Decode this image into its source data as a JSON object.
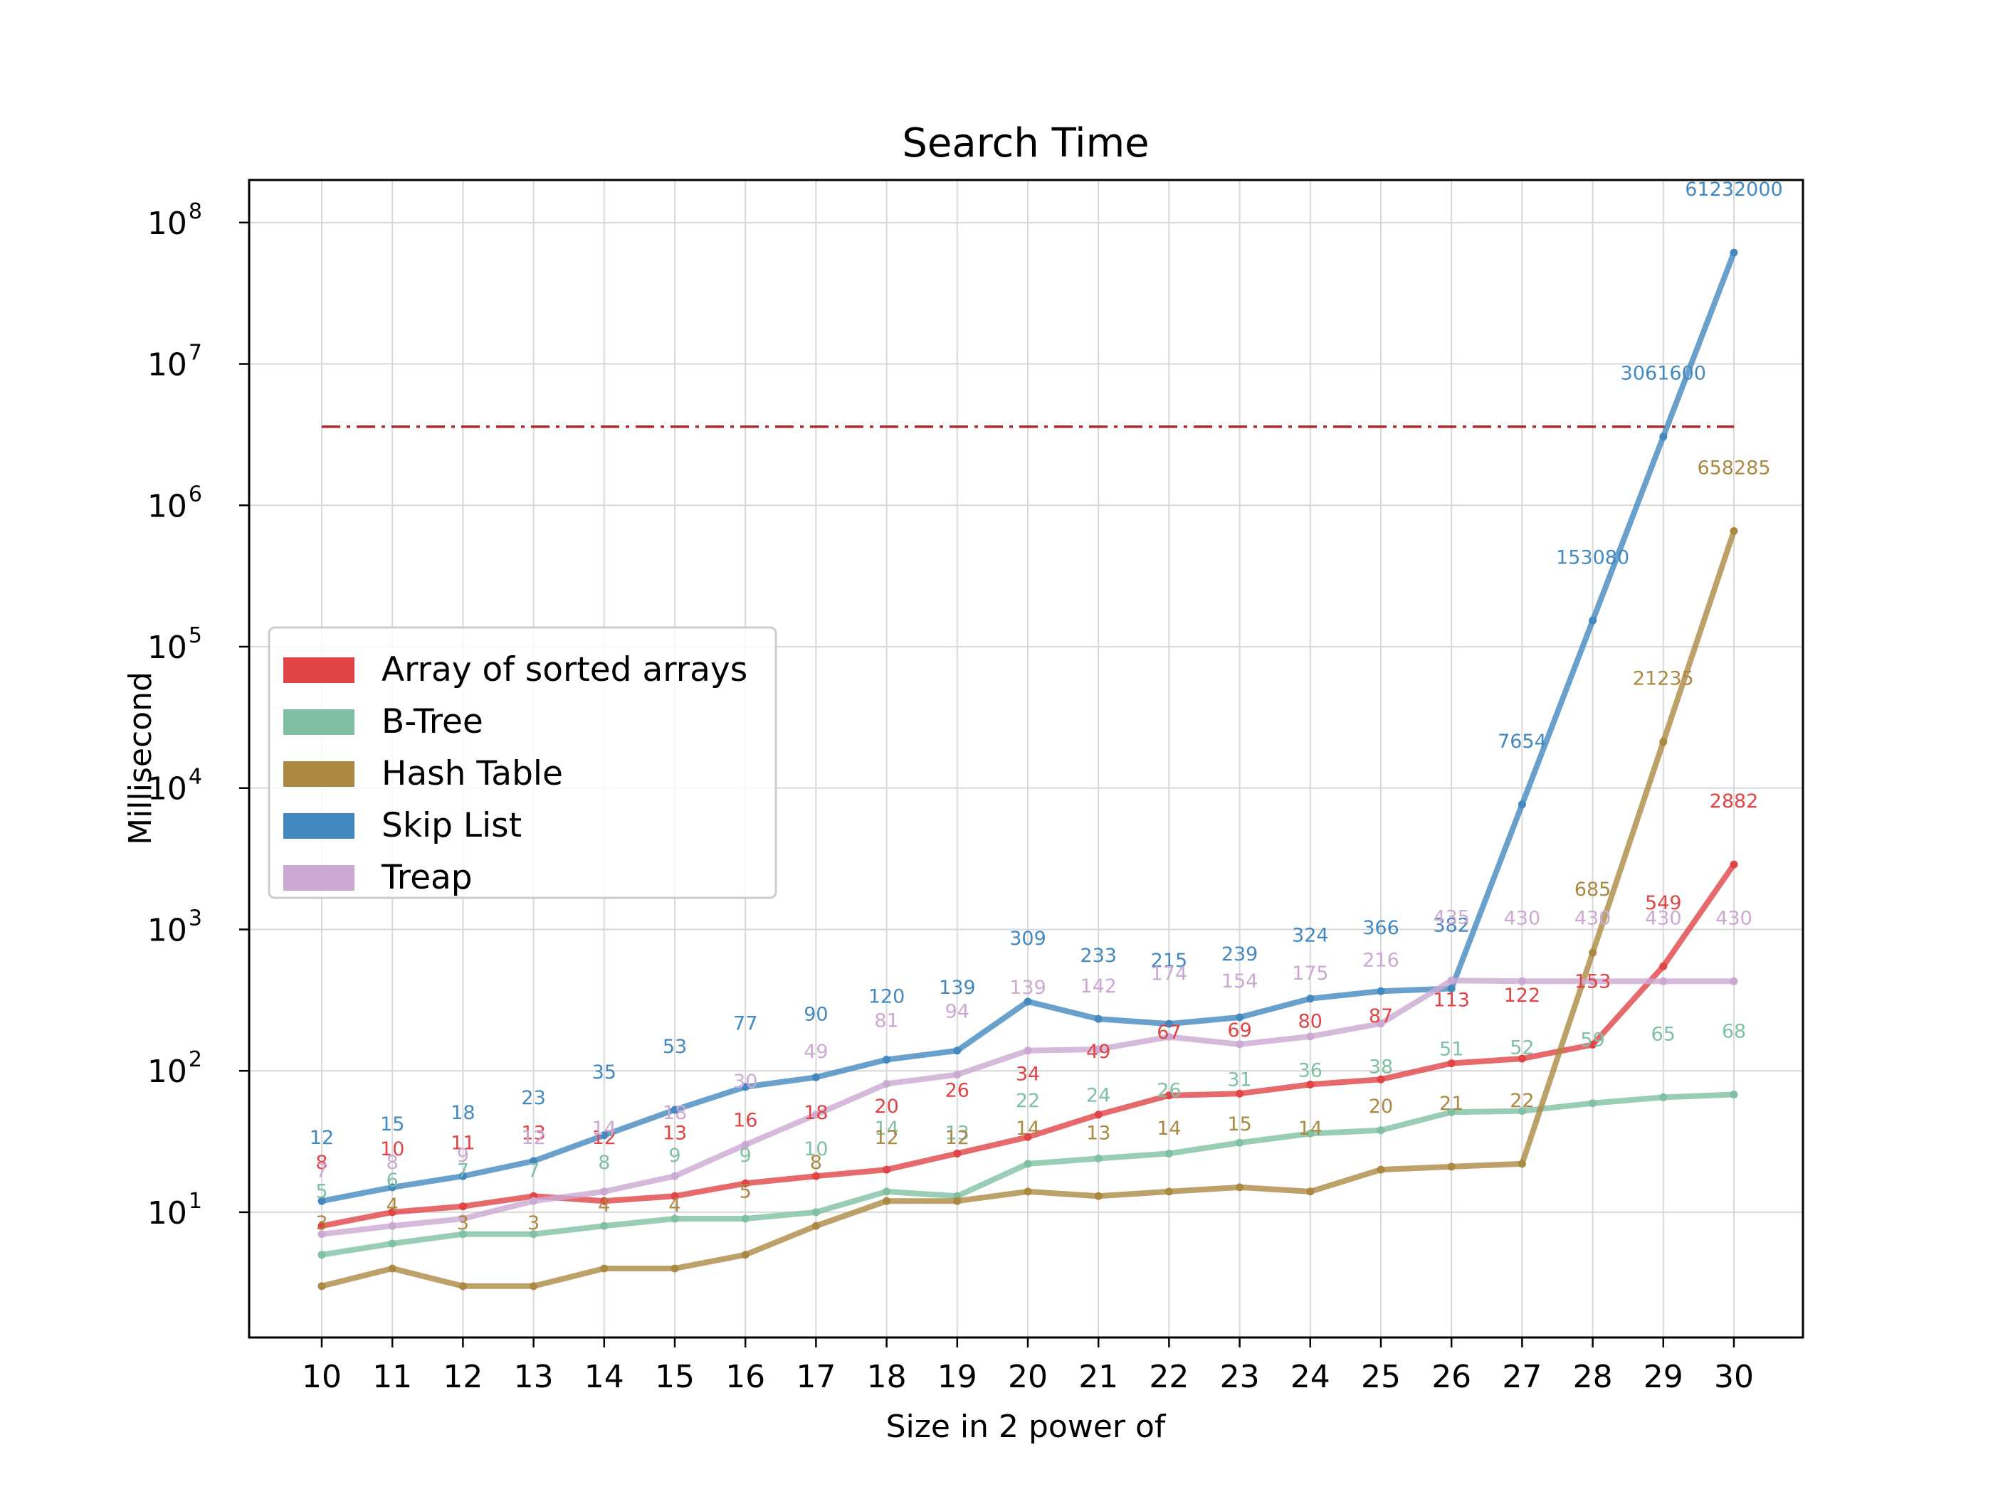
{
  "chart_data": {
    "type": "line",
    "title": "Search Time",
    "xlabel": "Size in 2 power of",
    "ylabel": "Millisecond",
    "yscale": "log",
    "ylim": [
      1.3,
      200000000
    ],
    "grid": true,
    "legend_position": "center-left",
    "x": [
      10,
      11,
      12,
      13,
      14,
      15,
      16,
      17,
      18,
      19,
      20,
      21,
      22,
      23,
      24,
      25,
      26,
      27,
      28,
      29,
      30
    ],
    "x_tick_labels": [
      "10",
      "11",
      "12",
      "13",
      "14",
      "15",
      "16",
      "17",
      "18",
      "19",
      "20",
      "21",
      "22",
      "23",
      "24",
      "25",
      "26",
      "27",
      "28",
      "29",
      "30"
    ],
    "y_ticks": [
      {
        "base": "10",
        "exp": "1",
        "value": 10
      },
      {
        "base": "10",
        "exp": "2",
        "value": 100
      },
      {
        "base": "10",
        "exp": "3",
        "value": 1000
      },
      {
        "base": "10",
        "exp": "4",
        "value": 10000
      },
      {
        "base": "10",
        "exp": "5",
        "value": 100000
      },
      {
        "base": "10",
        "exp": "6",
        "value": 1000000
      },
      {
        "base": "10",
        "exp": "7",
        "value": 10000000
      },
      {
        "base": "10",
        "exp": "8",
        "value": 100000000
      }
    ],
    "reference_line": {
      "value": 3600000,
      "color": "#a8282c",
      "style": "dashdot"
    },
    "series": [
      {
        "name": "Array of sorted arrays",
        "color": "#e04446",
        "values": [
          8,
          10,
          11,
          13,
          12,
          13,
          16,
          18,
          20,
          26,
          34,
          49,
          67,
          69,
          80,
          87,
          113,
          122,
          153,
          549,
          2882
        ],
        "labels": [
          "8",
          "10",
          "11",
          "13",
          "12",
          "13",
          "16",
          "18",
          "20",
          "26",
          "34",
          "49",
          "67",
          "69",
          "80",
          "87",
          "113",
          "122",
          "153",
          "549",
          "2882"
        ]
      },
      {
        "name": "B-Tree",
        "color": "#80c0a4",
        "values": [
          5,
          6,
          7,
          7,
          8,
          9,
          9,
          10,
          14,
          13,
          22,
          24,
          26,
          31,
          36,
          38,
          51,
          52,
          59,
          65,
          68
        ],
        "labels": [
          "5",
          "6",
          "7",
          "7",
          "8",
          "9",
          "9",
          "10",
          "14",
          "13",
          "22",
          "24",
          "26",
          "31",
          "36",
          "38",
          "51",
          "52",
          "59",
          "65",
          "68"
        ]
      },
      {
        "name": "Hash Table",
        "color": "#ab8943",
        "values": [
          3,
          4,
          3,
          3,
          4,
          4,
          5,
          8,
          12,
          12,
          14,
          13,
          14,
          15,
          14,
          20,
          21,
          22,
          685,
          21235,
          658285
        ],
        "labels": [
          "3",
          "4",
          "3",
          "3",
          "4",
          "4",
          "5",
          "8",
          "12",
          "12",
          "14",
          "13",
          "14",
          "15",
          "14",
          "20",
          "21",
          "22",
          "685",
          "21235",
          "658285"
        ]
      },
      {
        "name": "Skip List",
        "color": "#4389bf",
        "values": [
          12,
          15,
          18,
          23,
          35,
          53,
          77,
          90,
          120,
          139,
          309,
          233,
          215,
          239,
          324,
          366,
          382,
          7654,
          153080,
          3061600,
          61232000
        ],
        "labels": [
          "12",
          "15",
          "18",
          "23",
          "35",
          "53",
          "77",
          "90",
          "120",
          "139",
          "309",
          "233",
          "215",
          "239",
          "324",
          "366",
          "382",
          "7654",
          "153080",
          "3061600",
          "61232000"
        ]
      },
      {
        "name": "Treap",
        "color": "#cca9d2",
        "values": [
          7,
          8,
          9,
          12,
          14,
          18,
          30,
          49,
          81,
          94,
          139,
          142,
          174,
          154,
          175,
          216,
          435,
          430,
          430,
          430,
          430
        ],
        "labels": [
          "7",
          "8",
          "9",
          "12",
          "14",
          "18",
          "30",
          "49",
          "81",
          "94",
          "139",
          "142",
          "174",
          "154",
          "175",
          "216",
          "435",
          "430",
          "430",
          "430",
          "430"
        ]
      }
    ]
  }
}
